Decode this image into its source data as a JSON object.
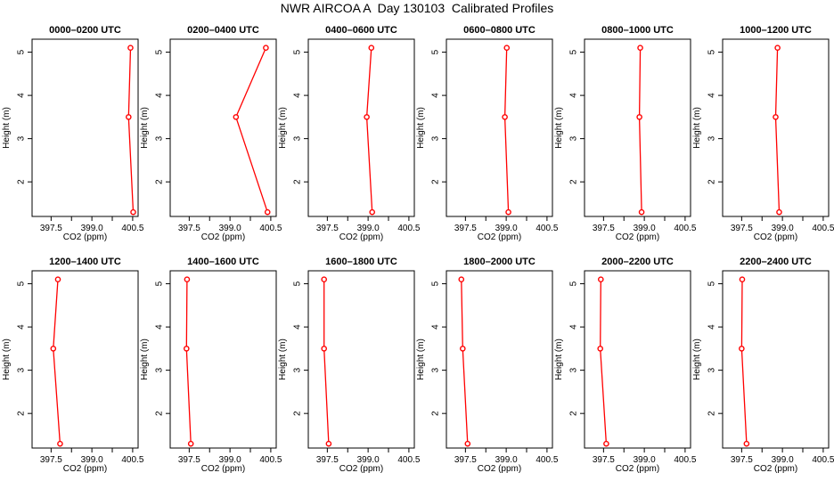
{
  "title": "NWR AIRCOA A  Day 130103  Calibrated Profiles",
  "colors": {
    "series": "#ff0000",
    "frame": "#000000"
  },
  "chart_data": [
    {
      "type": "line",
      "title": "0000–0200 UTC",
      "xlabel": "CO2 (ppm)",
      "ylabel": "Height (m)",
      "xlim": [
        396.8,
        400.7
      ],
      "ylim": [
        1.2,
        5.3
      ],
      "xticks": [
        "397.5",
        "399.0",
        "400.5"
      ],
      "yticks": [
        "2",
        "3",
        "4",
        "5"
      ],
      "series": [
        {
          "name": "CO2",
          "x": [
            400.42,
            400.35,
            400.52
          ],
          "y": [
            5.1,
            3.5,
            1.3
          ]
        }
      ]
    },
    {
      "type": "line",
      "title": "0200–0400 UTC",
      "xlabel": "CO2 (ppm)",
      "ylabel": "Height (m)",
      "xlim": [
        396.8,
        400.7
      ],
      "ylim": [
        1.2,
        5.3
      ],
      "xticks": [
        "397.5",
        "399.0",
        "400.5"
      ],
      "yticks": [
        "2",
        "3",
        "4",
        "5"
      ],
      "series": [
        {
          "name": "CO2",
          "x": [
            400.32,
            399.22,
            400.38
          ],
          "y": [
            5.1,
            3.5,
            1.3
          ]
        }
      ]
    },
    {
      "type": "line",
      "title": "0400–0600 UTC",
      "xlabel": "CO2 (ppm)",
      "ylabel": "Height (m)",
      "xlim": [
        396.8,
        400.7
      ],
      "ylim": [
        1.2,
        5.3
      ],
      "xticks": [
        "397.5",
        "399.0",
        "400.5"
      ],
      "yticks": [
        "2",
        "3",
        "4",
        "5"
      ],
      "series": [
        {
          "name": "CO2",
          "x": [
            399.12,
            398.95,
            399.15
          ],
          "y": [
            5.1,
            3.5,
            1.3
          ]
        }
      ]
    },
    {
      "type": "line",
      "title": "0600–0800 UTC",
      "xlabel": "CO2 (ppm)",
      "ylabel": "Height (m)",
      "xlim": [
        396.8,
        400.7
      ],
      "ylim": [
        1.2,
        5.3
      ],
      "xticks": [
        "397.5",
        "399.0",
        "400.5"
      ],
      "yticks": [
        "2",
        "3",
        "4",
        "5"
      ],
      "series": [
        {
          "name": "CO2",
          "x": [
            399.02,
            398.95,
            399.08
          ],
          "y": [
            5.1,
            3.5,
            1.3
          ]
        }
      ]
    },
    {
      "type": "line",
      "title": "0800–1000 UTC",
      "xlabel": "CO2 (ppm)",
      "ylabel": "Height (m)",
      "xlim": [
        396.8,
        400.7
      ],
      "ylim": [
        1.2,
        5.3
      ],
      "xticks": [
        "397.5",
        "399.0",
        "400.5"
      ],
      "yticks": [
        "2",
        "3",
        "4",
        "5"
      ],
      "series": [
        {
          "name": "CO2",
          "x": [
            398.85,
            398.82,
            398.9
          ],
          "y": [
            5.1,
            3.5,
            1.3
          ]
        }
      ]
    },
    {
      "type": "line",
      "title": "1000–1200 UTC",
      "xlabel": "CO2 (ppm)",
      "ylabel": "Height (m)",
      "xlim": [
        396.8,
        400.7
      ],
      "ylim": [
        1.2,
        5.3
      ],
      "xticks": [
        "397.5",
        "399.0",
        "400.5"
      ],
      "yticks": [
        "2",
        "3",
        "4",
        "5"
      ],
      "series": [
        {
          "name": "CO2",
          "x": [
            398.82,
            398.75,
            398.88
          ],
          "y": [
            5.1,
            3.5,
            1.3
          ]
        }
      ]
    },
    {
      "type": "line",
      "title": "1200–1400 UTC",
      "xlabel": "CO2 (ppm)",
      "ylabel": "Height (m)",
      "xlim": [
        396.8,
        400.7
      ],
      "ylim": [
        1.2,
        5.3
      ],
      "xticks": [
        "397.5",
        "399.0",
        "400.5"
      ],
      "yticks": [
        "2",
        "3",
        "4",
        "5"
      ],
      "series": [
        {
          "name": "CO2",
          "x": [
            397.75,
            397.58,
            397.83
          ],
          "y": [
            5.1,
            3.5,
            1.3
          ]
        }
      ]
    },
    {
      "type": "line",
      "title": "1400–1600 UTC",
      "xlabel": "CO2 (ppm)",
      "ylabel": "Height (m)",
      "xlim": [
        396.8,
        400.7
      ],
      "ylim": [
        1.2,
        5.3
      ],
      "xticks": [
        "397.5",
        "399.0",
        "400.5"
      ],
      "yticks": [
        "2",
        "3",
        "4",
        "5"
      ],
      "series": [
        {
          "name": "CO2",
          "x": [
            397.42,
            397.4,
            397.56
          ],
          "y": [
            5.1,
            3.5,
            1.3
          ]
        }
      ]
    },
    {
      "type": "line",
      "title": "1600–1800 UTC",
      "xlabel": "CO2 (ppm)",
      "ylabel": "Height (m)",
      "xlim": [
        396.8,
        400.7
      ],
      "ylim": [
        1.2,
        5.3
      ],
      "xticks": [
        "397.5",
        "399.0",
        "400.5"
      ],
      "yticks": [
        "2",
        "3",
        "4",
        "5"
      ],
      "series": [
        {
          "name": "CO2",
          "x": [
            397.38,
            397.38,
            397.55
          ],
          "y": [
            5.1,
            3.5,
            1.3
          ]
        }
      ]
    },
    {
      "type": "line",
      "title": "1800–2000 UTC",
      "xlabel": "CO2 (ppm)",
      "ylabel": "Height (m)",
      "xlim": [
        396.8,
        400.7
      ],
      "ylim": [
        1.2,
        5.3
      ],
      "xticks": [
        "397.5",
        "399.0",
        "400.5"
      ],
      "yticks": [
        "2",
        "3",
        "4",
        "5"
      ],
      "series": [
        {
          "name": "CO2",
          "x": [
            397.35,
            397.4,
            397.58
          ],
          "y": [
            5.1,
            3.5,
            1.3
          ]
        }
      ]
    },
    {
      "type": "line",
      "title": "2000–2200 UTC",
      "xlabel": "CO2 (ppm)",
      "ylabel": "Height (m)",
      "xlim": [
        396.8,
        400.7
      ],
      "ylim": [
        1.2,
        5.3
      ],
      "xticks": [
        "397.5",
        "399.0",
        "400.5"
      ],
      "yticks": [
        "2",
        "3",
        "4",
        "5"
      ],
      "series": [
        {
          "name": "CO2",
          "x": [
            397.4,
            397.38,
            397.6
          ],
          "y": [
            5.1,
            3.5,
            1.3
          ]
        }
      ]
    },
    {
      "type": "line",
      "title": "2200–2400 UTC",
      "xlabel": "CO2 (ppm)",
      "ylabel": "Height (m)",
      "xlim": [
        396.8,
        400.7
      ],
      "ylim": [
        1.2,
        5.3
      ],
      "xticks": [
        "397.5",
        "399.0",
        "400.5"
      ],
      "yticks": [
        "2",
        "3",
        "4",
        "5"
      ],
      "series": [
        {
          "name": "CO2",
          "x": [
            397.52,
            397.5,
            397.68
          ],
          "y": [
            5.1,
            3.5,
            1.3
          ]
        }
      ]
    }
  ]
}
